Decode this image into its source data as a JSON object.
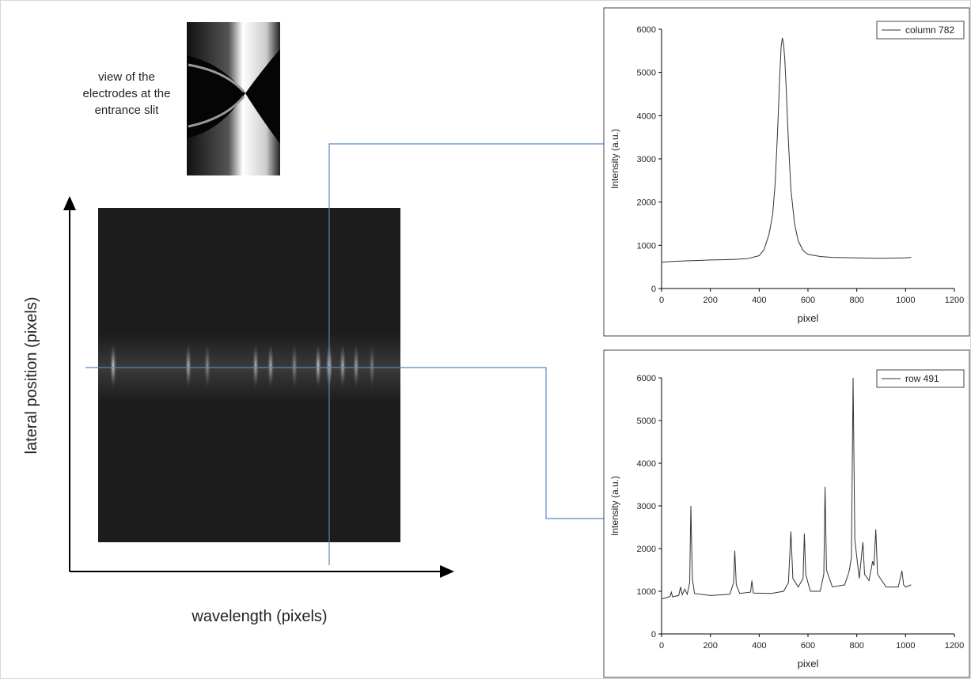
{
  "figure": {
    "inset_caption": [
      "view of the",
      "electrodes at the",
      "entrance slit"
    ],
    "y_label": "lateral position (pixels)",
    "x_label": "wavelength (pixels)"
  },
  "chart_data": [
    {
      "type": "line",
      "x_label": "pixel",
      "y_label": "Intensity (a.u.)",
      "x": [
        0,
        50,
        100,
        150,
        200,
        250,
        300,
        350,
        400,
        420,
        440,
        455,
        465,
        475,
        485,
        490,
        495,
        500,
        505,
        510,
        520,
        530,
        545,
        560,
        580,
        600,
        650,
        700,
        800,
        900,
        1000,
        1023
      ],
      "series": [
        {
          "name": "column 782",
          "color": "#333333",
          "values": [
            610,
            630,
            640,
            650,
            660,
            665,
            675,
            690,
            760,
            900,
            1250,
            1700,
            2400,
            3600,
            5000,
            5600,
            5800,
            5650,
            5300,
            4700,
            3400,
            2300,
            1500,
            1100,
            880,
            790,
            740,
            720,
            710,
            700,
            710,
            720
          ]
        }
      ],
      "xlim": [
        0,
        1200
      ],
      "xticks": [
        0,
        200,
        400,
        600,
        800,
        1000,
        1200
      ],
      "ylim": [
        0,
        6000
      ],
      "yticks": [
        0,
        1000,
        2000,
        3000,
        4000,
        5000,
        6000
      ],
      "legend": "upper right"
    },
    {
      "type": "line",
      "x_label": "pixel",
      "y_label": "Intensity (a.u.)",
      "x": [
        0,
        20,
        35,
        40,
        45,
        70,
        78,
        85,
        95,
        105,
        115,
        120,
        126,
        135,
        200,
        280,
        295,
        300,
        306,
        320,
        365,
        370,
        376,
        450,
        500,
        520,
        530,
        538,
        560,
        580,
        585,
        591,
        600,
        610,
        650,
        665,
        670,
        676,
        700,
        750,
        765,
        770,
        778,
        785,
        792,
        810,
        825,
        832,
        850,
        865,
        870,
        878,
        885,
        920,
        970,
        985,
        992,
        1000,
        1023
      ],
      "series": [
        {
          "name": "row 491",
          "color": "#333333",
          "values": [
            820,
            850,
            880,
            980,
            870,
            900,
            1100,
            920,
            1050,
            930,
            1200,
            3000,
            1300,
            950,
            900,
            930,
            1200,
            1950,
            1150,
            950,
            980,
            1250,
            960,
            950,
            1000,
            1200,
            2400,
            1300,
            1100,
            1300,
            2350,
            1400,
            1200,
            1000,
            1000,
            1400,
            3450,
            1500,
            1100,
            1150,
            1400,
            1500,
            1800,
            6000,
            2200,
            1300,
            2150,
            1400,
            1250,
            1700,
            1600,
            2450,
            1400,
            1100,
            1100,
            1480,
            1150,
            1100,
            1150
          ]
        }
      ],
      "xlim": [
        0,
        1200
      ],
      "xticks": [
        0,
        200,
        400,
        600,
        800,
        1000,
        1200
      ],
      "ylim": [
        0,
        6000
      ],
      "yticks": [
        0,
        1000,
        2000,
        3000,
        4000,
        5000,
        6000
      ],
      "legend": "upper right"
    }
  ]
}
